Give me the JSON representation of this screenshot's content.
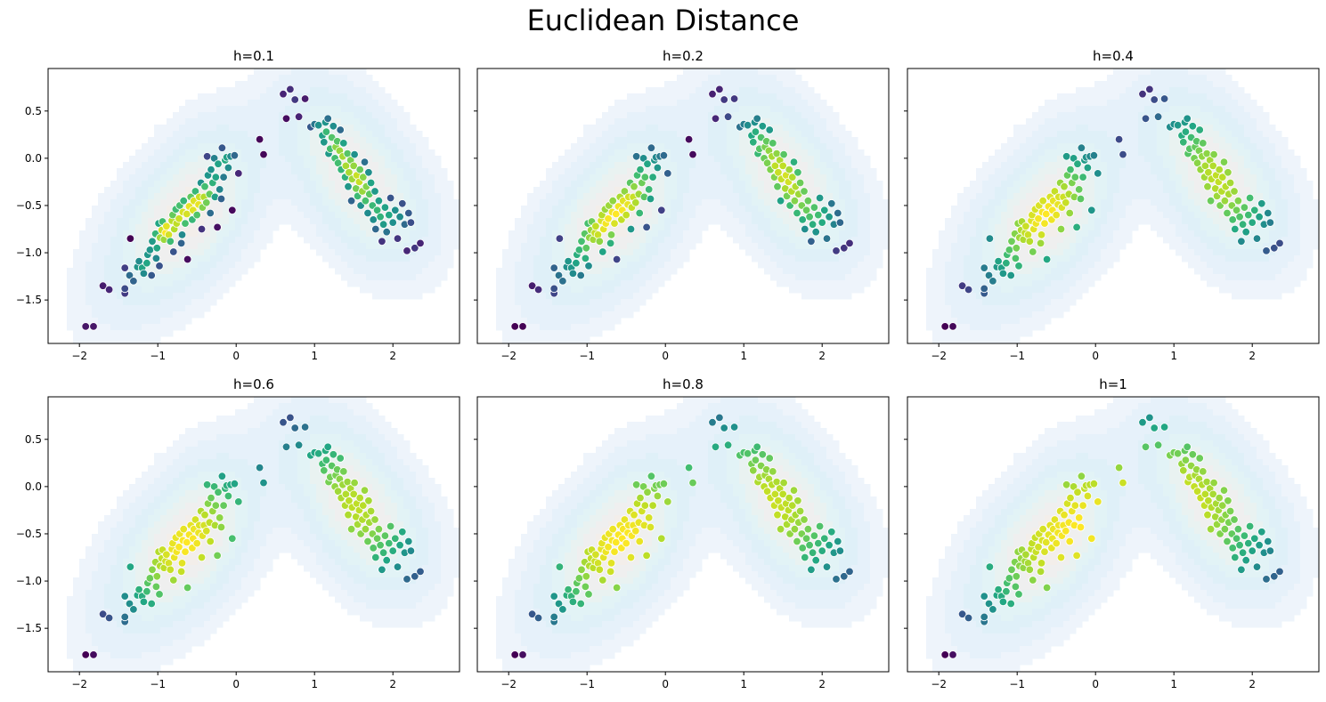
{
  "title": "Euclidean Distance",
  "colors": {
    "kde_fill": [
      "#eef4fb",
      "#e6f1fa",
      "#dff0f8",
      "#e2f3f6",
      "#e9f2f1",
      "#efefef",
      "#f3eeea"
    ],
    "kde_line": "#a9d6e5",
    "point_edge": "#ffffff",
    "colormap": "viridis"
  },
  "chart_data": [
    {
      "type": "scatter",
      "title": "h=0.1",
      "xticks": [
        "−2",
        "−1",
        "0",
        "1",
        "2"
      ],
      "yticks": [
        "0.5",
        "0.0",
        "−0.5",
        "−1.0",
        "−1.5"
      ],
      "show_yticks": true,
      "xlim": [
        -2.4,
        2.85
      ],
      "ylim": [
        -1.96,
        0.95
      ],
      "h": 0.1
    },
    {
      "type": "scatter",
      "title": "h=0.2",
      "xticks": [
        "−2",
        "−1",
        "0",
        "1",
        "2"
      ],
      "yticks": [],
      "show_yticks": false,
      "xlim": [
        -2.4,
        2.85
      ],
      "ylim": [
        -1.96,
        0.95
      ],
      "h": 0.2
    },
    {
      "type": "scatter",
      "title": "h=0.4",
      "xticks": [
        "−2",
        "−1",
        "0",
        "1",
        "2"
      ],
      "yticks": [],
      "show_yticks": false,
      "xlim": [
        -2.4,
        2.85
      ],
      "ylim": [
        -1.96,
        0.95
      ],
      "h": 0.4
    },
    {
      "type": "scatter",
      "title": "h=0.6",
      "xticks": [
        "−2",
        "−1",
        "0",
        "1",
        "2"
      ],
      "yticks": [
        "0.5",
        "0.0",
        "−0.5",
        "−1.0",
        "−1.5"
      ],
      "show_yticks": true,
      "xlim": [
        -2.4,
        2.85
      ],
      "ylim": [
        -1.96,
        0.95
      ],
      "h": 0.6
    },
    {
      "type": "scatter",
      "title": "h=0.8",
      "xticks": [
        "−2",
        "−1",
        "0",
        "1",
        "2"
      ],
      "yticks": [],
      "show_yticks": false,
      "xlim": [
        -2.4,
        2.85
      ],
      "ylim": [
        -1.96,
        0.95
      ],
      "h": 0.8
    },
    {
      "type": "scatter",
      "title": "h=1",
      "xticks": [
        "−2",
        "−1",
        "0",
        "1",
        "2"
      ],
      "yticks": [],
      "show_yticks": false,
      "xlim": [
        -2.4,
        2.85
      ],
      "ylim": [
        -1.96,
        0.95
      ],
      "h": 1.0
    }
  ],
  "points": [
    [
      -1.92,
      -1.78
    ],
    [
      -1.82,
      -1.78
    ],
    [
      -1.7,
      -1.35
    ],
    [
      -1.62,
      -1.39
    ],
    [
      -1.42,
      -1.43
    ],
    [
      -1.42,
      -1.38
    ],
    [
      -1.42,
      -1.16
    ],
    [
      -1.36,
      -1.24
    ],
    [
      -1.35,
      -0.85
    ],
    [
      -1.31,
      -1.3
    ],
    [
      -1.26,
      -1.15
    ],
    [
      -1.24,
      -1.09
    ],
    [
      -1.2,
      -1.16
    ],
    [
      -1.18,
      -1.22
    ],
    [
      -1.14,
      -1.11
    ],
    [
      -1.13,
      -1.02
    ],
    [
      -1.1,
      -0.97
    ],
    [
      -1.08,
      -1.24
    ],
    [
      -1.07,
      -0.88
    ],
    [
      -1.03,
      -0.8
    ],
    [
      -1.02,
      -1.06
    ],
    [
      -1.01,
      -0.95
    ],
    [
      -0.99,
      -0.69
    ],
    [
      -0.98,
      -1.14
    ],
    [
      -0.97,
      -0.84
    ],
    [
      -0.95,
      -0.76
    ],
    [
      -0.94,
      -0.67
    ],
    [
      -0.92,
      -0.86
    ],
    [
      -0.9,
      -0.79
    ],
    [
      -0.89,
      -0.72
    ],
    [
      -0.86,
      -0.81
    ],
    [
      -0.84,
      -0.88
    ],
    [
      -0.82,
      -0.66
    ],
    [
      -0.81,
      -0.6
    ],
    [
      -0.8,
      -0.99
    ],
    [
      -0.79,
      -0.75
    ],
    [
      -0.77,
      -0.54
    ],
    [
      -0.76,
      -0.69
    ],
    [
      -0.73,
      -0.64
    ],
    [
      -0.72,
      -0.5
    ],
    [
      -0.7,
      -0.9
    ],
    [
      -0.69,
      -0.81
    ],
    [
      -0.68,
      -0.57
    ],
    [
      -0.67,
      -0.45
    ],
    [
      -0.65,
      -0.69
    ],
    [
      -0.63,
      -0.59
    ],
    [
      -0.62,
      -1.07
    ],
    [
      -0.6,
      -0.51
    ],
    [
      -0.58,
      -0.41
    ],
    [
      -0.56,
      -0.65
    ],
    [
      -0.55,
      -0.55
    ],
    [
      -0.54,
      -0.45
    ],
    [
      -0.52,
      -0.35
    ],
    [
      -0.5,
      -0.6
    ],
    [
      -0.48,
      -0.49
    ],
    [
      -0.47,
      -0.41
    ],
    [
      -0.45,
      -0.26
    ],
    [
      -0.44,
      -0.75
    ],
    [
      -0.43,
      -0.52
    ],
    [
      -0.41,
      -0.41
    ],
    [
      -0.4,
      -0.3
    ],
    [
      -0.38,
      -0.47
    ],
    [
      -0.37,
      0.02
    ],
    [
      -0.36,
      -0.18
    ],
    [
      -0.34,
      -0.38
    ],
    [
      -0.33,
      -0.58
    ],
    [
      -0.32,
      -0.12
    ],
    [
      -0.3,
      -0.26
    ],
    [
      -0.28,
      0.0
    ],
    [
      -0.27,
      -0.41
    ],
    [
      -0.26,
      -0.2
    ],
    [
      -0.24,
      -0.73
    ],
    [
      -0.23,
      -0.06
    ],
    [
      -0.21,
      -0.33
    ],
    [
      -0.19,
      -0.43
    ],
    [
      -0.18,
      0.11
    ],
    [
      -0.16,
      -0.2
    ],
    [
      -0.14,
      -0.02
    ],
    [
      -0.12,
      0.01
    ],
    [
      -0.1,
      -0.1
    ],
    [
      -0.07,
      0.02
    ],
    [
      -0.05,
      -0.55
    ],
    [
      -0.02,
      0.03
    ],
    [
      0.03,
      -0.16
    ],
    [
      0.3,
      0.2
    ],
    [
      0.35,
      0.04
    ],
    [
      0.6,
      0.68
    ],
    [
      0.64,
      0.42
    ],
    [
      0.69,
      0.73
    ],
    [
      0.75,
      0.62
    ],
    [
      0.8,
      0.44
    ],
    [
      0.88,
      0.63
    ],
    [
      0.95,
      0.33
    ],
    [
      1.0,
      0.36
    ],
    [
      1.05,
      0.35
    ],
    [
      1.1,
      0.24
    ],
    [
      1.12,
      0.17
    ],
    [
      1.14,
      0.38
    ],
    [
      1.15,
      0.28
    ],
    [
      1.17,
      0.42
    ],
    [
      1.18,
      0.05
    ],
    [
      1.2,
      0.1
    ],
    [
      1.22,
      0.22
    ],
    [
      1.24,
      0.34
    ],
    [
      1.26,
      0.0
    ],
    [
      1.27,
      0.12
    ],
    [
      1.29,
      0.18
    ],
    [
      1.3,
      -0.05
    ],
    [
      1.32,
      0.08
    ],
    [
      1.33,
      0.3
    ],
    [
      1.34,
      -0.12
    ],
    [
      1.36,
      0.02
    ],
    [
      1.37,
      0.16
    ],
    [
      1.39,
      -0.2
    ],
    [
      1.4,
      -0.08
    ],
    [
      1.42,
      0.05
    ],
    [
      1.43,
      -0.3
    ],
    [
      1.44,
      -0.15
    ],
    [
      1.46,
      -0.02
    ],
    [
      1.47,
      -0.45
    ],
    [
      1.48,
      -0.22
    ],
    [
      1.5,
      -0.08
    ],
    [
      1.51,
      0.04
    ],
    [
      1.53,
      -0.32
    ],
    [
      1.54,
      -0.18
    ],
    [
      1.55,
      -0.4
    ],
    [
      1.57,
      -0.25
    ],
    [
      1.58,
      -0.12
    ],
    [
      1.59,
      -0.5
    ],
    [
      1.61,
      -0.35
    ],
    [
      1.62,
      -0.2
    ],
    [
      1.64,
      -0.04
    ],
    [
      1.65,
      -0.45
    ],
    [
      1.66,
      -0.3
    ],
    [
      1.68,
      -0.58
    ],
    [
      1.69,
      -0.15
    ],
    [
      1.7,
      -0.38
    ],
    [
      1.72,
      -0.26
    ],
    [
      1.74,
      -0.5
    ],
    [
      1.75,
      -0.65
    ],
    [
      1.77,
      -0.35
    ],
    [
      1.78,
      -0.75
    ],
    [
      1.8,
      -0.55
    ],
    [
      1.82,
      -0.45
    ],
    [
      1.84,
      -0.62
    ],
    [
      1.86,
      -0.88
    ],
    [
      1.88,
      -0.7
    ],
    [
      1.9,
      -0.52
    ],
    [
      1.92,
      -0.78
    ],
    [
      1.95,
      -0.6
    ],
    [
      1.97,
      -0.42
    ],
    [
      2.0,
      -0.68
    ],
    [
      2.03,
      -0.55
    ],
    [
      2.06,
      -0.85
    ],
    [
      2.09,
      -0.62
    ],
    [
      2.12,
      -0.48
    ],
    [
      2.15,
      -0.7
    ],
    [
      2.18,
      -0.98
    ],
    [
      2.2,
      -0.58
    ],
    [
      2.23,
      -0.68
    ],
    [
      2.28,
      -0.95
    ],
    [
      2.35,
      -0.9
    ]
  ]
}
